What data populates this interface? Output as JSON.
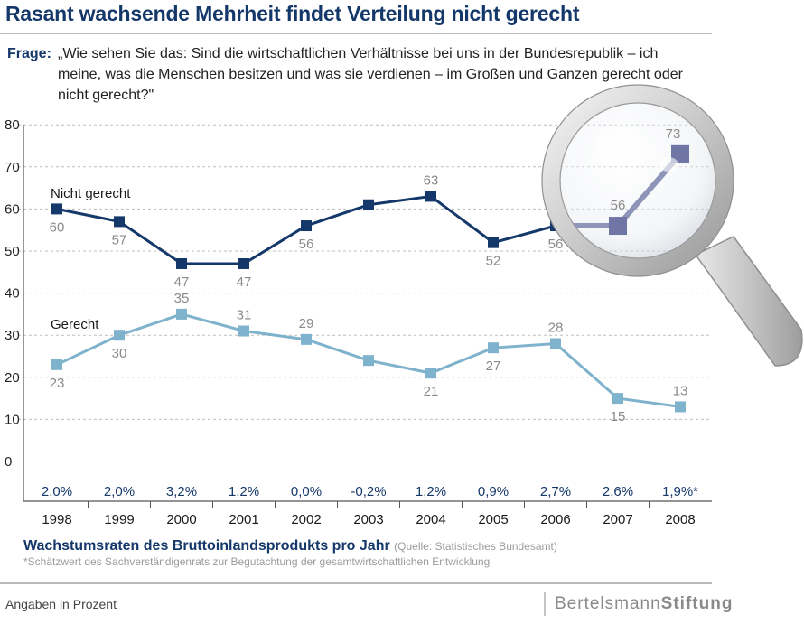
{
  "title": "Rasant wachsende Mehrheit findet Verteilung nicht gerecht",
  "question": {
    "label": "Frage:",
    "text": "„Wie sehen Sie das: Sind die wirtschaftlichen Verhältnisse bei uns in der Bundesrepublik – ich meine, was die Menschen besitzen und was sie verdienen – im Großen und Ganzen gerecht oder nicht gerecht?\""
  },
  "chart_data": {
    "type": "line",
    "x": [
      "1998",
      "1999",
      "2000",
      "2001",
      "2002",
      "2003",
      "2004",
      "2005",
      "2006",
      "2007",
      "2008"
    ],
    "ylim": [
      0,
      80
    ],
    "yticks": [
      0,
      10,
      20,
      30,
      40,
      50,
      60,
      70,
      80
    ],
    "grid": true,
    "series": [
      {
        "name": "Nicht gerecht",
        "color": "#15386a",
        "values": [
          60,
          57,
          47,
          47,
          56,
          61,
          63,
          52,
          56,
          56,
          73
        ],
        "labels": [
          "60",
          "57",
          "47",
          "47",
          "56",
          "",
          "63",
          "52",
          "56",
          "56",
          "73"
        ]
      },
      {
        "name": "Gerecht",
        "color": "#7fb2cc",
        "values": [
          23,
          30,
          35,
          31,
          29,
          24,
          21,
          27,
          28,
          15,
          13
        ],
        "labels": [
          "23",
          "30",
          "35",
          "31",
          "29",
          "",
          "21",
          "27",
          "28",
          "15",
          "13"
        ]
      }
    ],
    "growth_rates": [
      "2,0%",
      "2,0%",
      "3,2%",
      "1,2%",
      "0,0%",
      "-0,2%",
      "1,2%",
      "0,9%",
      "2,7%",
      "2,6%",
      "1,9%*"
    ],
    "growth_title": "Wachstumsraten des Bruttoinlandsprodukts pro Jahr",
    "growth_source": "(Quelle: Statistisches Bundesamt)",
    "footnote": "*Schätzwert des Sachverständigenrats zur Begutachtung der gesamtwirtschaftlichen Entwicklung",
    "magnifier_icon": "magnifier-icon"
  },
  "footer": {
    "note": "Angaben in Prozent",
    "brand_light": "Bertelsmann",
    "brand_bold": "Stiftung"
  }
}
